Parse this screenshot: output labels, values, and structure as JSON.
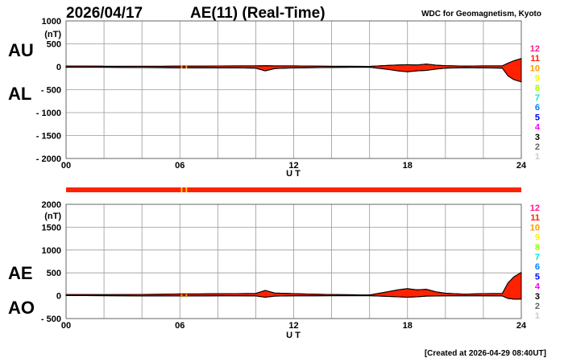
{
  "header": {
    "date": "2026/04/17",
    "title": "AE(11) (Real-Time)",
    "source": "WDC for Geomagnetism, Kyoto"
  },
  "footer": {
    "created": "[Created at 2026-04-29 08:40UT]"
  },
  "legend": {
    "labels": [
      "12",
      "11",
      "10",
      "9",
      "8",
      "7",
      "6",
      "5",
      "4",
      "3",
      "2",
      "1"
    ],
    "colors": [
      "#ff1a8c",
      "#ff2200",
      "#ff9900",
      "#ffee00",
      "#99ff00",
      "#00eecc",
      "#0080ff",
      "#0000ff",
      "#ff00ff",
      "#000000",
      "#666666",
      "#cccccc"
    ]
  },
  "colors": {
    "fill": "#ff2200",
    "outline": "#000000",
    "grid": "#999999",
    "station_mark": "#ff9900"
  },
  "chart_data": [
    {
      "type": "area",
      "name": "AU/AL",
      "labels": {
        "upper": "AU",
        "lower": "AL"
      },
      "unit": "(nT)",
      "xlabel": "U T",
      "xlim": [
        0,
        24
      ],
      "ylim": [
        -2000,
        1000
      ],
      "yticks": [
        1000,
        500,
        0,
        -500,
        -1000,
        -1500,
        -2000
      ],
      "ytick_labels": [
        "1000",
        "500",
        "0",
        "- 500",
        "- 1000",
        "- 1500",
        "- 2000"
      ],
      "xticks": [
        0,
        6,
        12,
        18,
        24
      ],
      "xtick_labels": [
        "00",
        "06",
        "12",
        "18",
        "24"
      ],
      "grid": true,
      "x": [
        0,
        1,
        2,
        3,
        4,
        5,
        6,
        7,
        8,
        9,
        10,
        10.5,
        11,
        12,
        13,
        14,
        15,
        16,
        17,
        17.5,
        18,
        18.5,
        19,
        19.5,
        20,
        21,
        22,
        23,
        23.3,
        23.6,
        24
      ],
      "series": [
        {
          "name": "AU",
          "values": [
            15,
            15,
            12,
            10,
            10,
            12,
            15,
            15,
            18,
            20,
            20,
            25,
            20,
            20,
            15,
            12,
            10,
            8,
            30,
            40,
            45,
            40,
            60,
            35,
            25,
            15,
            20,
            20,
            80,
            130,
            180
          ]
        },
        {
          "name": "AL",
          "values": [
            -10,
            -10,
            -12,
            -15,
            -18,
            -20,
            -25,
            -25,
            -25,
            -25,
            -30,
            -90,
            -40,
            -25,
            -20,
            -15,
            -12,
            -10,
            -60,
            -90,
            -110,
            -90,
            -80,
            -50,
            -30,
            -20,
            -25,
            -30,
            -200,
            -280,
            -330
          ]
        }
      ]
    },
    {
      "type": "area",
      "name": "AE/AO",
      "labels": {
        "upper": "AE",
        "lower": "AO"
      },
      "unit": "(nT)",
      "xlabel": "U T",
      "xlim": [
        0,
        24
      ],
      "ylim": [
        -500,
        2000
      ],
      "yticks": [
        2000,
        1500,
        1000,
        500,
        0,
        -500
      ],
      "ytick_labels": [
        "2000",
        "1500",
        "1000",
        "500",
        "0",
        "- 500"
      ],
      "xticks": [
        0,
        6,
        12,
        18,
        24
      ],
      "xtick_labels": [
        "00",
        "06",
        "12",
        "18",
        "24"
      ],
      "grid": true,
      "x": [
        0,
        1,
        2,
        3,
        4,
        5,
        6,
        7,
        8,
        9,
        10,
        10.5,
        11,
        12,
        13,
        14,
        15,
        16,
        17,
        17.5,
        18,
        18.5,
        19,
        19.5,
        20,
        21,
        22,
        23,
        23.3,
        23.6,
        24
      ],
      "series": [
        {
          "name": "AE",
          "values": [
            25,
            25,
            24,
            25,
            28,
            32,
            40,
            40,
            43,
            45,
            50,
            115,
            60,
            45,
            35,
            27,
            22,
            18,
            90,
            130,
            155,
            130,
            140,
            85,
            55,
            35,
            45,
            50,
            280,
            410,
            510
          ]
        },
        {
          "name": "AO",
          "values": [
            2.5,
            2.5,
            0,
            -2.5,
            -4,
            -4,
            -5,
            -5,
            -3.5,
            -2.5,
            -5,
            -32.5,
            -10,
            -2.5,
            -2.5,
            -1.5,
            -1,
            -1,
            -15,
            -25,
            -32.5,
            -25,
            -10,
            -7.5,
            -2.5,
            -2.5,
            -2.5,
            -5,
            -60,
            -75,
            -75
          ]
        }
      ]
    }
  ],
  "station_bar": {
    "marks_hours": [
      6.05,
      6.3
    ]
  }
}
